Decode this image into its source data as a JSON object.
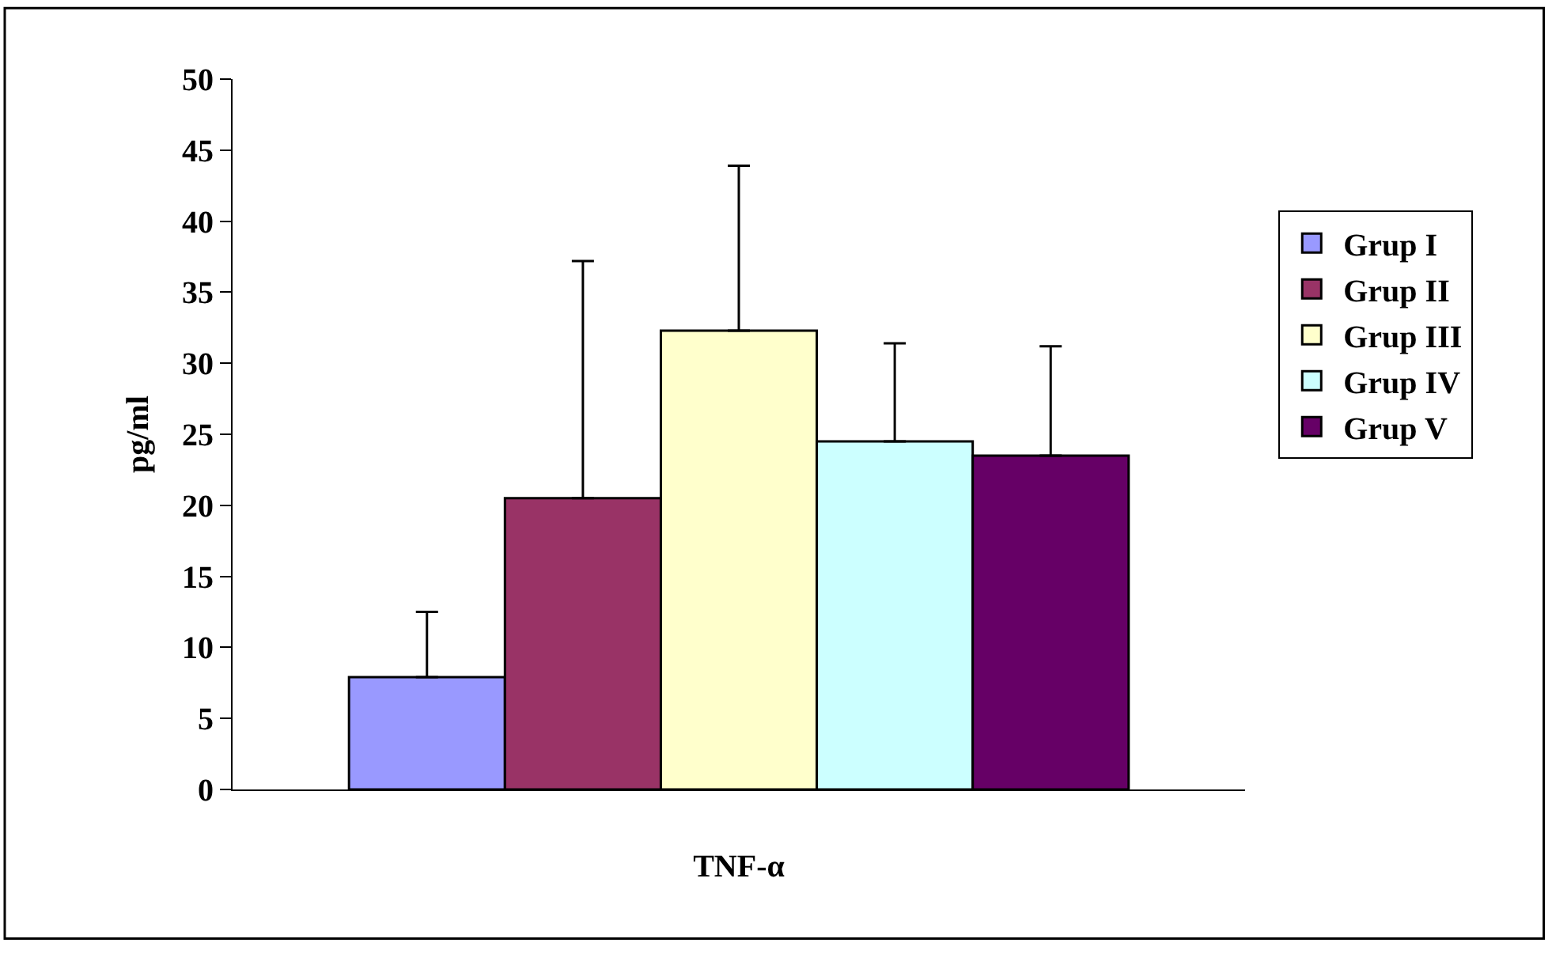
{
  "chart_data": {
    "type": "bar",
    "ylabel": "pg/ml",
    "categories": [
      "TNF-α"
    ],
    "series": [
      {
        "name": "Grup I",
        "color": "#9999ff",
        "values": [
          7.9
        ],
        "errors": [
          [
            7.9,
            12.5
          ]
        ]
      },
      {
        "name": "Grup II",
        "color": "#993366",
        "values": [
          20.5
        ],
        "errors": [
          [
            20.5,
            37.2
          ]
        ]
      },
      {
        "name": "Grup III",
        "color": "#ffffcc",
        "values": [
          32.3
        ],
        "errors": [
          [
            32.3,
            43.9
          ]
        ]
      },
      {
        "name": "Grup IV",
        "color": "#ccffff",
        "values": [
          24.5
        ],
        "errors": [
          [
            24.5,
            31.4
          ]
        ]
      },
      {
        "name": "Grup V",
        "color": "#660066",
        "values": [
          23.5
        ],
        "errors": [
          [
            23.5,
            31.2
          ]
        ]
      }
    ],
    "ylim": [
      0,
      50
    ],
    "yticks": [
      0,
      5,
      10,
      15,
      20,
      25,
      30,
      35,
      40,
      45,
      50
    ],
    "legend": "right"
  }
}
